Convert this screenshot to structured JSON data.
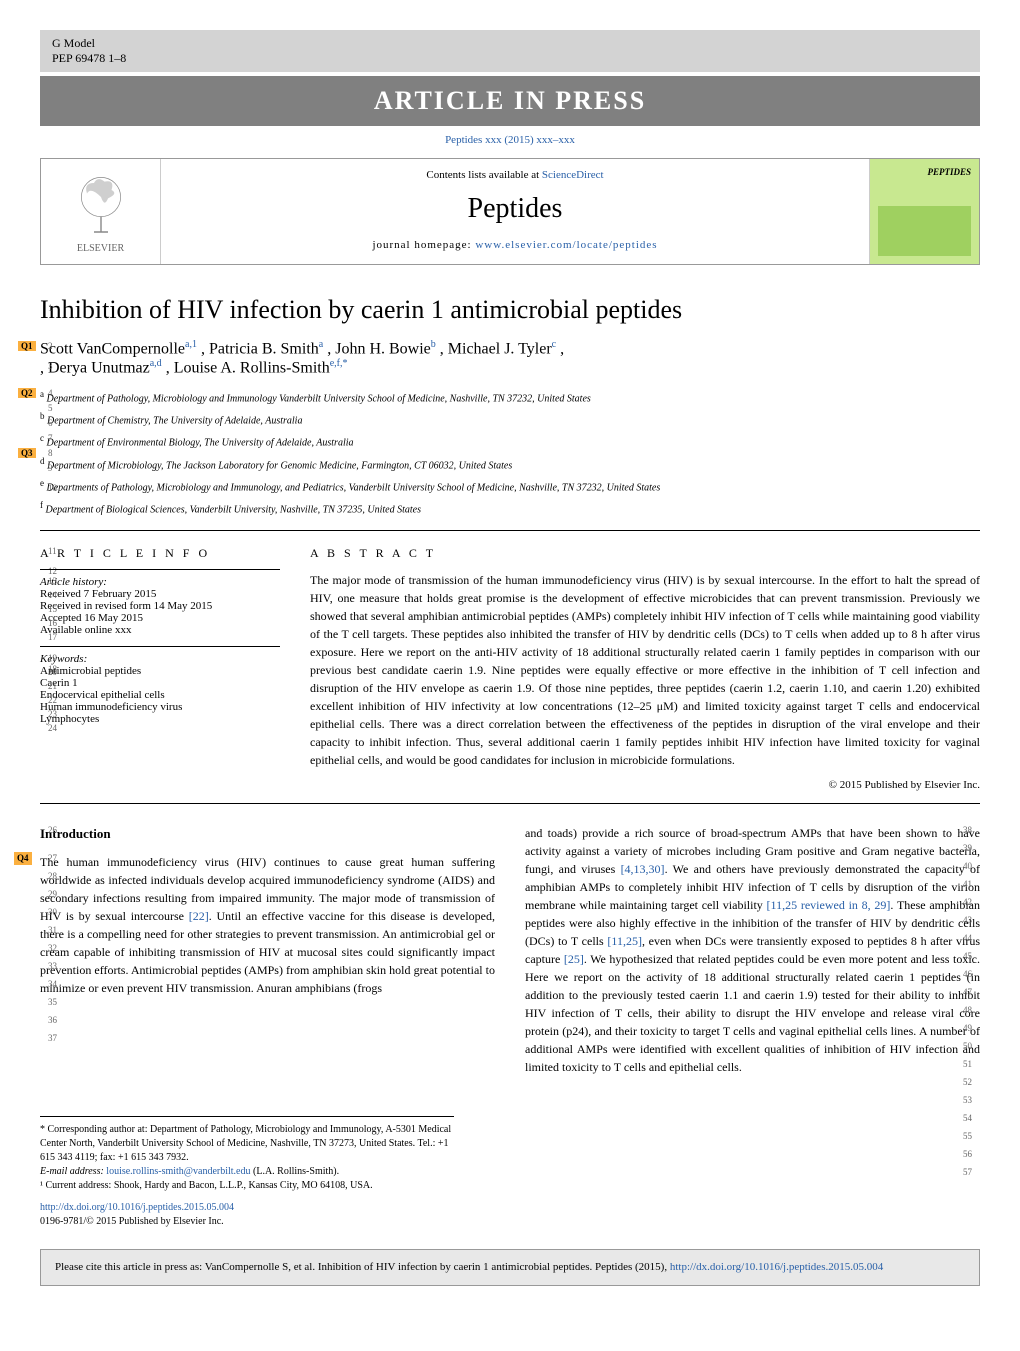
{
  "header": {
    "model_line1": "G Model",
    "model_line2": "PEP 69478 1–8",
    "banner": "ARTICLE IN PRESS",
    "journal_ref": "Peptides xxx (2015) xxx–xxx"
  },
  "journal_box": {
    "contents_text": "Contents lists available at ",
    "sciencedirect": "ScienceDirect",
    "journal_name": "Peptides",
    "homepage_label": "journal homepage: ",
    "homepage_url": "www.elsevier.com/locate/peptides",
    "elsevier": "ELSEVIER",
    "cover_title": "PEPTIDES"
  },
  "article": {
    "title": "Inhibition of HIV infection by caerin 1 antimicrobial peptides",
    "authors_html": [
      {
        "name": "Scott VanCompernolle",
        "sup": "a,1"
      },
      {
        "name": ", Patricia B. Smith",
        "sup": "a"
      },
      {
        "name": ", John H. Bowie",
        "sup": "b"
      },
      {
        "name": ", Michael J. Tyler",
        "sup": "c"
      },
      {
        "name": ", Derya Unutmaz",
        "sup": "a,d"
      },
      {
        "name": ", Louise A. Rollins-Smith",
        "sup": "e,f,*"
      }
    ],
    "affiliations": [
      {
        "label": "a",
        "text": "Department of Pathology, Microbiology and Immunology Vanderbilt University School of Medicine, Nashville, TN 37232, United States"
      },
      {
        "label": "b",
        "text": "Department of Chemistry, The University of Adelaide, Australia"
      },
      {
        "label": "c",
        "text": "Department of Environmental Biology, The University of Adelaide, Australia"
      },
      {
        "label": "d",
        "text": "Department of Microbiology, The Jackson Laboratory for Genomic Medicine, Farmington, CT 06032, United States"
      },
      {
        "label": "e",
        "text": "Departments of Pathology, Microbiology and Immunology, and Pediatrics, Vanderbilt University School of Medicine, Nashville, TN 37232, United States"
      },
      {
        "label": "f",
        "text": "Department of Biological Sciences, Vanderbilt University, Nashville, TN 37235, United States"
      }
    ],
    "q_tags": {
      "q1": "Q1",
      "q2": "Q2",
      "q3": "Q3",
      "q4": "Q4"
    }
  },
  "info": {
    "heading": "a r t i c l e   i n f o",
    "history_label": "Article history:",
    "received": "Received 7 February 2015",
    "revised": "Received in revised form 14 May 2015",
    "accepted": "Accepted 16 May 2015",
    "online": "Available online xxx",
    "keywords_label": "Keywords:",
    "keywords": [
      "Antimicrobial peptides",
      "Caerin 1",
      "Endocervical epithelial cells",
      "Human immunodeficiency virus",
      "Lymphocytes"
    ]
  },
  "abstract": {
    "heading": "a b s t r a c t",
    "text": "The major mode of transmission of the human immunodeficiency virus (HIV) is by sexual intercourse. In the effort to halt the spread of HIV, one measure that holds great promise is the development of effective microbicides that can prevent transmission. Previously we showed that several amphibian antimicrobial peptides (AMPs) completely inhibit HIV infection of T cells while maintaining good viability of the T cell targets. These peptides also inhibited the transfer of HIV by dendritic cells (DCs) to T cells when added up to 8 h after virus exposure. Here we report on the anti-HIV activity of 18 additional structurally related caerin 1 family peptides in comparison with our previous best candidate caerin 1.9. Nine peptides were equally effective or more effective in the inhibition of T cell infection and disruption of the HIV envelope as caerin 1.9. Of those nine peptides, three peptides (caerin 1.2, caerin 1.10, and caerin 1.20) exhibited excellent inhibition of HIV infectivity at low concentrations (12–25 μM) and limited toxicity against target T cells and endocervical epithelial cells. There was a direct correlation between the effectiveness of the peptides in disruption of the viral envelope and their capacity to inhibit infection. Thus, several additional caerin 1 family peptides inhibit HIV infection have limited toxicity for vaginal epithelial cells, and would be good candidates for inclusion in microbicide formulations.",
    "copyright": "© 2015 Published by Elsevier Inc."
  },
  "body": {
    "intro_heading": "Introduction",
    "col1": "The human immunodeficiency virus (HIV) continues to cause great human suffering worldwide as infected individuals develop acquired immunodeficiency syndrome (AIDS) and secondary infections resulting from impaired immunity. The major mode of transmission of HIV is by sexual intercourse [22]. Until an effective vaccine for this disease is developed, there is a compelling need for other strategies to prevent transmission. An antimicrobial gel or cream capable of inhibiting transmission of HIV at mucosal sites could significantly impact prevention efforts. Antimicrobial peptides (AMPs) from amphibian skin hold great potential to minimize or even prevent HIV transmission. Anuran amphibians (frogs",
    "col2": "and toads) provide a rich source of broad-spectrum AMPs that have been shown to have activity against a variety of microbes including Gram positive and Gram negative bacteria, fungi, and viruses [4,13,30]. We and others have previously demonstrated the capacity of amphibian AMPs to completely inhibit HIV infection of T cells by disruption of the virion membrane while maintaining target cell viability [11,25 reviewed in 8, 29]. These amphibian peptides were also highly effective in the inhibition of the transfer of HIV by dendritic cells (DCs) to T cells [11,25], even when DCs were transiently exposed to peptides 8 h after virus capture [25]. We hypothesized that related peptides could be even more potent and less toxic. Here we report on the activity of 18 additional structurally related caerin 1 peptides (in addition to the previously tested caerin 1.1 and caerin 1.9) tested for their ability to inhibit HIV infection of T cells, their ability to disrupt the HIV envelope and release viral core protein (p24), and their toxicity to target T cells and vaginal epithelial cells lines. A number of additional AMPs were identified with excellent qualities of inhibition of HIV infection and limited toxicity to T cells and epithelial cells.",
    "refs": {
      "r22": "[22]",
      "r41330": "[4,13,30]",
      "r1125a": "[11,25 reviewed in 8, 29]",
      "r1125b": "[11,25]",
      "r25": "[25]"
    }
  },
  "footnotes": {
    "corr": "* Corresponding author at: Department of Pathology, Microbiology and Immunology, A-5301 Medical Center North, Vanderbilt University School of Medicine, Nashville, TN 37273, United States. Tel.: +1 615 343 4119; fax: +1 615 343 7932.",
    "email_label": "E-mail address: ",
    "email": "louise.rollins-smith@vanderbilt.edu",
    "email_name": " (L.A. Rollins-Smith).",
    "note1": "¹ Current address: Shook, Hardy and Bacon, L.L.P., Kansas City, MO 64108, USA.",
    "doi_url": "http://dx.doi.org/10.1016/j.peptides.2015.05.004",
    "issn": "0196-9781/© 2015 Published by Elsevier Inc."
  },
  "cite_box": {
    "text": "Please cite this article in press as: VanCompernolle S, et al. Inhibition of HIV infection by caerin 1 antimicrobial peptides. Peptides (2015), ",
    "url": "http://dx.doi.org/10.1016/j.peptides.2015.05.004"
  },
  "line_numbers": {
    "left": [
      "1",
      "2",
      "3",
      "4",
      "5",
      "6",
      "7",
      "8",
      "9",
      "10",
      "11",
      "12",
      "13",
      "14",
      "15",
      "16",
      "17",
      "18",
      "19",
      "20",
      "21",
      "22",
      "23",
      "24",
      "25",
      "26",
      "27",
      "28",
      "29",
      "30",
      "31",
      "32",
      "33",
      "34",
      "35",
      "36",
      "37"
    ],
    "right": [
      "38",
      "39",
      "40",
      "41",
      "42",
      "43",
      "44",
      "45",
      "46",
      "47",
      "48",
      "49",
      "50",
      "51",
      "52",
      "53",
      "54",
      "55",
      "56",
      "57"
    ]
  }
}
